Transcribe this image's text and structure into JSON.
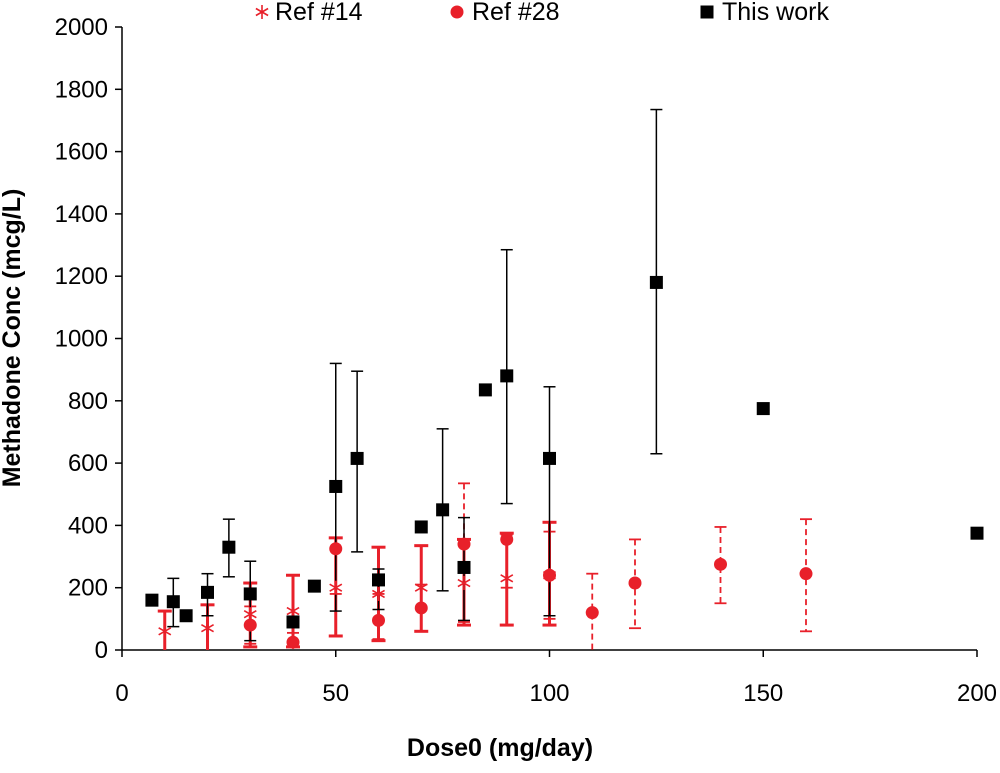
{
  "chart_data": {
    "type": "scatter",
    "title": "",
    "xlabel": "Dose0 (mg/day)",
    "ylabel": "Methadone Conc (mcg/L)",
    "xlim": [
      0,
      200
    ],
    "ylim": [
      0,
      2000
    ],
    "xticks": [
      0,
      50,
      100,
      150,
      200
    ],
    "yticks": [
      0,
      200,
      400,
      600,
      800,
      1000,
      1200,
      1400,
      1600,
      1800,
      2000
    ],
    "grid": false,
    "legend_position": "top",
    "series": [
      {
        "name": "Ref #14",
        "marker": "asterisk",
        "color": "#e8202a",
        "error_bar_style": "solid-thick",
        "points": [
          {
            "x": 10,
            "y": 60,
            "err_low": 0,
            "err_high": 125
          },
          {
            "x": 20,
            "y": 70,
            "err_low": 0,
            "err_high": 145
          },
          {
            "x": 30,
            "y": 115,
            "err_low": 10,
            "err_high": 215
          },
          {
            "x": 40,
            "y": 125,
            "err_low": 10,
            "err_high": 240
          },
          {
            "x": 50,
            "y": 200,
            "err_low": 45,
            "err_high": 360
          },
          {
            "x": 60,
            "y": 180,
            "err_low": 30,
            "err_high": 330
          },
          {
            "x": 70,
            "y": 200,
            "err_low": 60,
            "err_high": 335
          },
          {
            "x": 80,
            "y": 215,
            "err_low": 80,
            "err_high": 355
          },
          {
            "x": 90,
            "y": 230,
            "err_low": 80,
            "err_high": 375
          },
          {
            "x": 100,
            "y": 240,
            "err_low": 80,
            "err_high": 410
          }
        ]
      },
      {
        "name": "Ref #28",
        "marker": "circle",
        "color": "#e8202a",
        "error_bar_style": "dashed",
        "points": [
          {
            "x": 30,
            "y": 80,
            "err_low": 20,
            "err_high": 140
          },
          {
            "x": 40,
            "y": 25,
            "err_low": 0,
            "err_high": 55
          },
          {
            "x": 50,
            "y": 325,
            "err_low": 180,
            "err_high": 360
          },
          {
            "x": 60,
            "y": 95,
            "err_low": 35,
            "err_high": 180
          },
          {
            "x": 70,
            "y": 135,
            "err_low": 60,
            "err_high": 210
          },
          {
            "x": 80,
            "y": 340,
            "err_low": 90,
            "err_high": 535
          },
          {
            "x": 90,
            "y": 355,
            "err_low": 200,
            "err_high": 370
          },
          {
            "x": 100,
            "y": 240,
            "err_low": 100,
            "err_high": 380
          },
          {
            "x": 110,
            "y": 120,
            "err_low": 0,
            "err_high": 245
          },
          {
            "x": 120,
            "y": 215,
            "err_low": 70,
            "err_high": 355
          },
          {
            "x": 140,
            "y": 275,
            "err_low": 150,
            "err_high": 395
          },
          {
            "x": 160,
            "y": 245,
            "err_low": 60,
            "err_high": 420
          }
        ]
      },
      {
        "name": "This work",
        "marker": "square",
        "color": "#000000",
        "error_bar_style": "solid-thin",
        "points": [
          {
            "x": 7,
            "y": 160
          },
          {
            "x": 12,
            "y": 155,
            "err_low": 75,
            "err_high": 230
          },
          {
            "x": 15,
            "y": 110
          },
          {
            "x": 20,
            "y": 185,
            "err_low": 110,
            "err_high": 245
          },
          {
            "x": 25,
            "y": 330,
            "err_low": 235,
            "err_high": 420
          },
          {
            "x": 30,
            "y": 180,
            "err_low": 30,
            "err_high": 285
          },
          {
            "x": 40,
            "y": 90
          },
          {
            "x": 45,
            "y": 205
          },
          {
            "x": 50,
            "y": 525,
            "err_low": 125,
            "err_high": 920
          },
          {
            "x": 55,
            "y": 615,
            "err_low": 315,
            "err_high": 895
          },
          {
            "x": 60,
            "y": 225,
            "err_low": 130,
            "err_high": 260
          },
          {
            "x": 70,
            "y": 395
          },
          {
            "x": 75,
            "y": 450,
            "err_low": 190,
            "err_high": 710
          },
          {
            "x": 80,
            "y": 265,
            "err_low": 95,
            "err_high": 425
          },
          {
            "x": 85,
            "y": 835
          },
          {
            "x": 90,
            "y": 880,
            "err_low": 470,
            "err_high": 1285
          },
          {
            "x": 100,
            "y": 615,
            "err_low": 110,
            "err_high": 845
          },
          {
            "x": 125,
            "y": 1180,
            "err_low": 630,
            "err_high": 1735
          },
          {
            "x": 150,
            "y": 775
          },
          {
            "x": 200,
            "y": 375
          }
        ]
      }
    ]
  }
}
